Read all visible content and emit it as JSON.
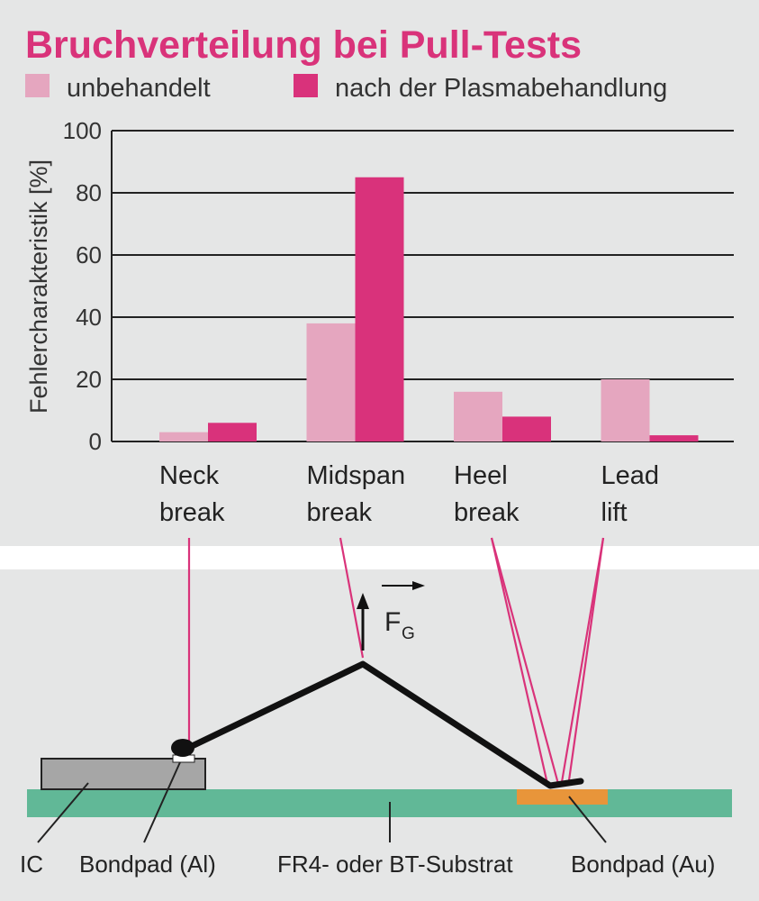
{
  "colors": {
    "background": "#e5e6e6",
    "title": "#d9337a",
    "unbehandelt": "#e5a6bf",
    "plasma": "#d9327b",
    "wire": "#111111",
    "substrate": "#61b897",
    "ic": "#a6a6a6",
    "bondpad_au": "#e8953a",
    "pointer": "#d9337a"
  },
  "chart_data": {
    "type": "bar",
    "title": "Bruchverteilung bei Pull-Tests",
    "ylabel": "Fehlercharakteristik [%]",
    "xlabel": "",
    "ylim": [
      0,
      100
    ],
    "yticks": [
      0,
      20,
      40,
      60,
      80,
      100
    ],
    "grid": true,
    "legend_position": "top",
    "categories": [
      {
        "line1": "Neck",
        "line2": "break"
      },
      {
        "line1": "Midspan",
        "line2": "break"
      },
      {
        "line1": "Heel",
        "line2": "break"
      },
      {
        "line1": "Lead",
        "line2": "lift"
      }
    ],
    "series": [
      {
        "name": "unbehandelt",
        "values": [
          3,
          38,
          16,
          20
        ]
      },
      {
        "name": "nach der Plasmabehandlung",
        "values": [
          6,
          85,
          8,
          2
        ]
      }
    ]
  },
  "diagram": {
    "force_label": "F",
    "force_subscript": "G",
    "labels": {
      "ic": "IC",
      "bondpad_al": "Bondpad (Al)",
      "substrate": "FR4- oder BT-Substrat",
      "bondpad_au": "Bondpad (Au)"
    }
  }
}
